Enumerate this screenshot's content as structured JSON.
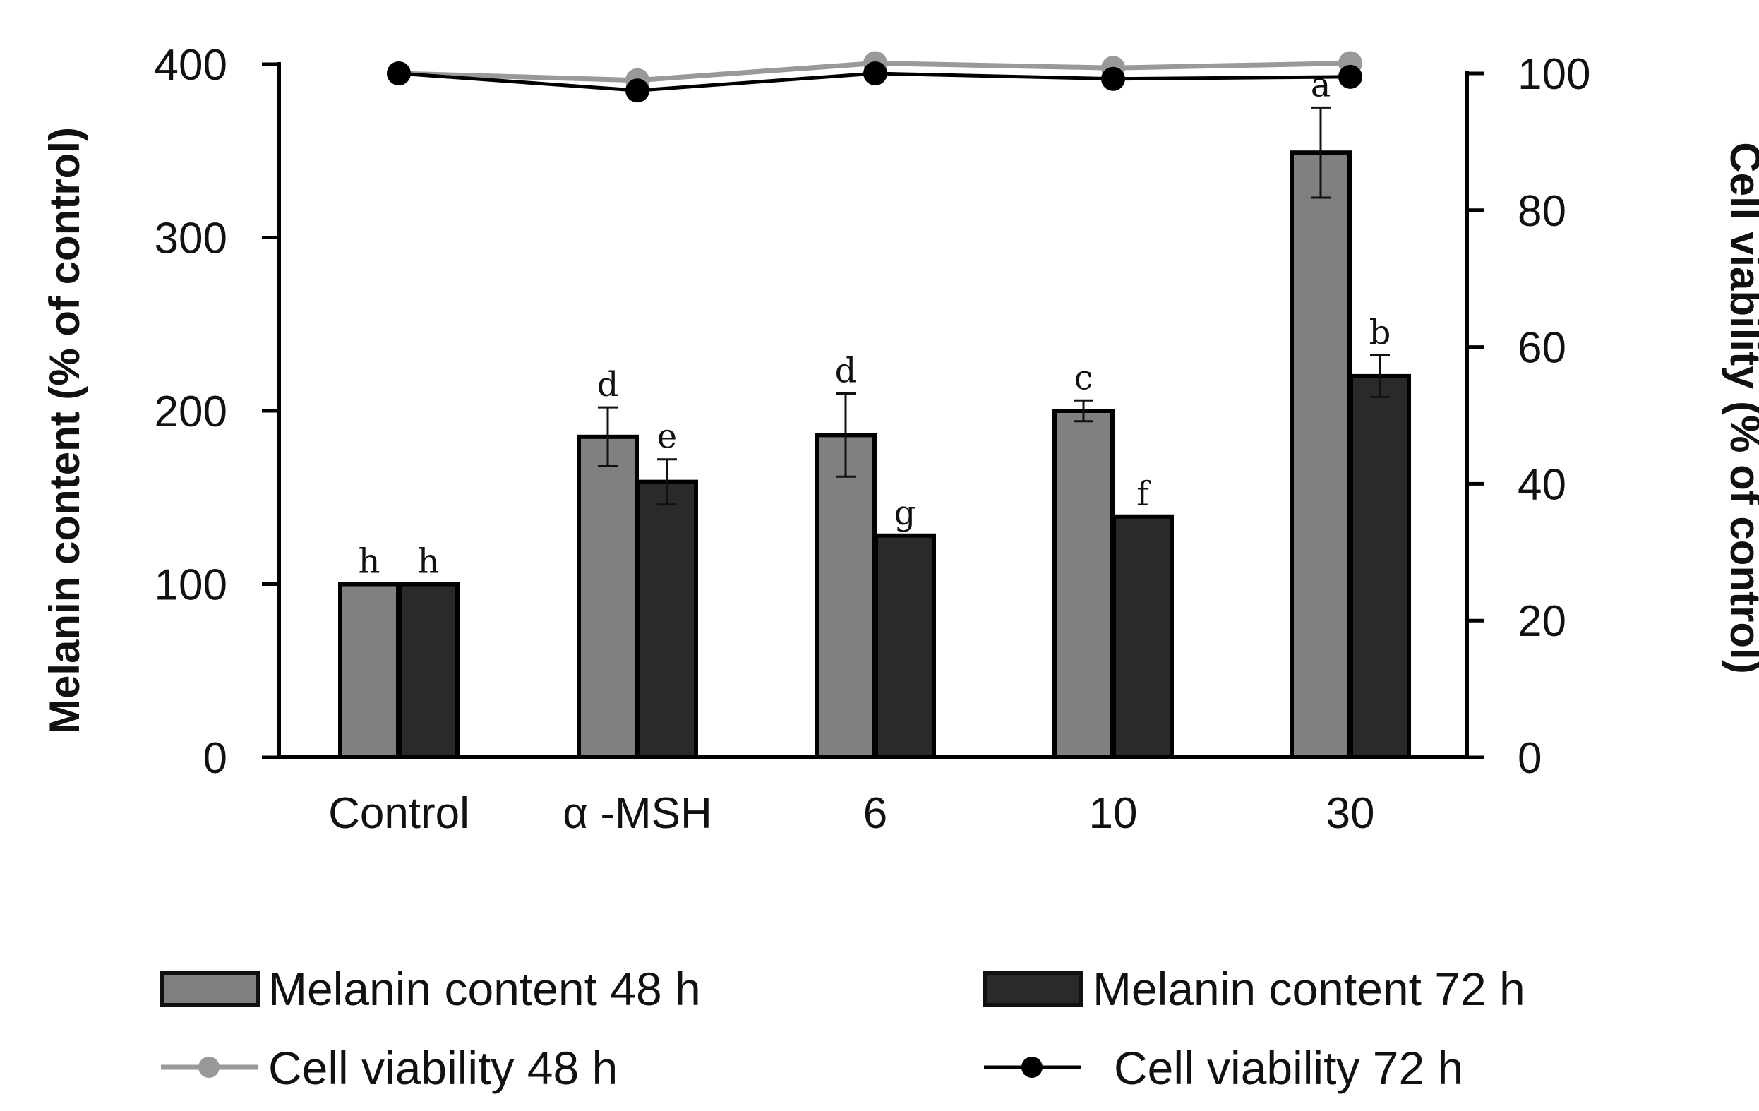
{
  "chart_data": {
    "type": "bar+line",
    "categories": [
      "Control",
      "α -MSH",
      "6",
      "10",
      "30"
    ],
    "bar_series": [
      {
        "name": "Melanin content 48 h",
        "color": "#808080",
        "values": [
          100,
          185,
          186,
          200,
          349
        ],
        "errors": [
          0,
          17,
          24,
          6,
          26
        ],
        "labels": [
          "h",
          "d",
          "d",
          "c",
          "a"
        ]
      },
      {
        "name": "Melanin content 72 h",
        "color": "#2a2a2a",
        "values": [
          100,
          159,
          128,
          139,
          220
        ],
        "errors": [
          0,
          13,
          0,
          0,
          12
        ],
        "labels": [
          "h",
          "e",
          "g",
          "f",
          "b"
        ]
      }
    ],
    "line_series": [
      {
        "name": "Cell viability 48 h",
        "color": "#999999",
        "values": [
          100,
          99,
          101.5,
          100.8,
          101.5
        ]
      },
      {
        "name": "Cell viability 72 h",
        "color": "#000000",
        "values": [
          100,
          97.5,
          100,
          99.2,
          99.5
        ]
      }
    ],
    "y_left": {
      "label": "Melanin content (% of control)",
      "ylim": [
        0,
        400
      ],
      "ticks": [
        "0",
        "100",
        "200",
        "300",
        "400"
      ]
    },
    "y_right": {
      "label": "Cell viability (% of control)",
      "ylim": [
        0,
        100
      ],
      "ticks": [
        "0",
        "20",
        "40",
        "60",
        "80",
        "100"
      ]
    },
    "legend": {
      "placement": "bottom",
      "items": [
        "Melanin content 48 h",
        "Melanin content 72 h",
        "Cell viability 48 h",
        "Cell viability 72 h"
      ]
    }
  }
}
